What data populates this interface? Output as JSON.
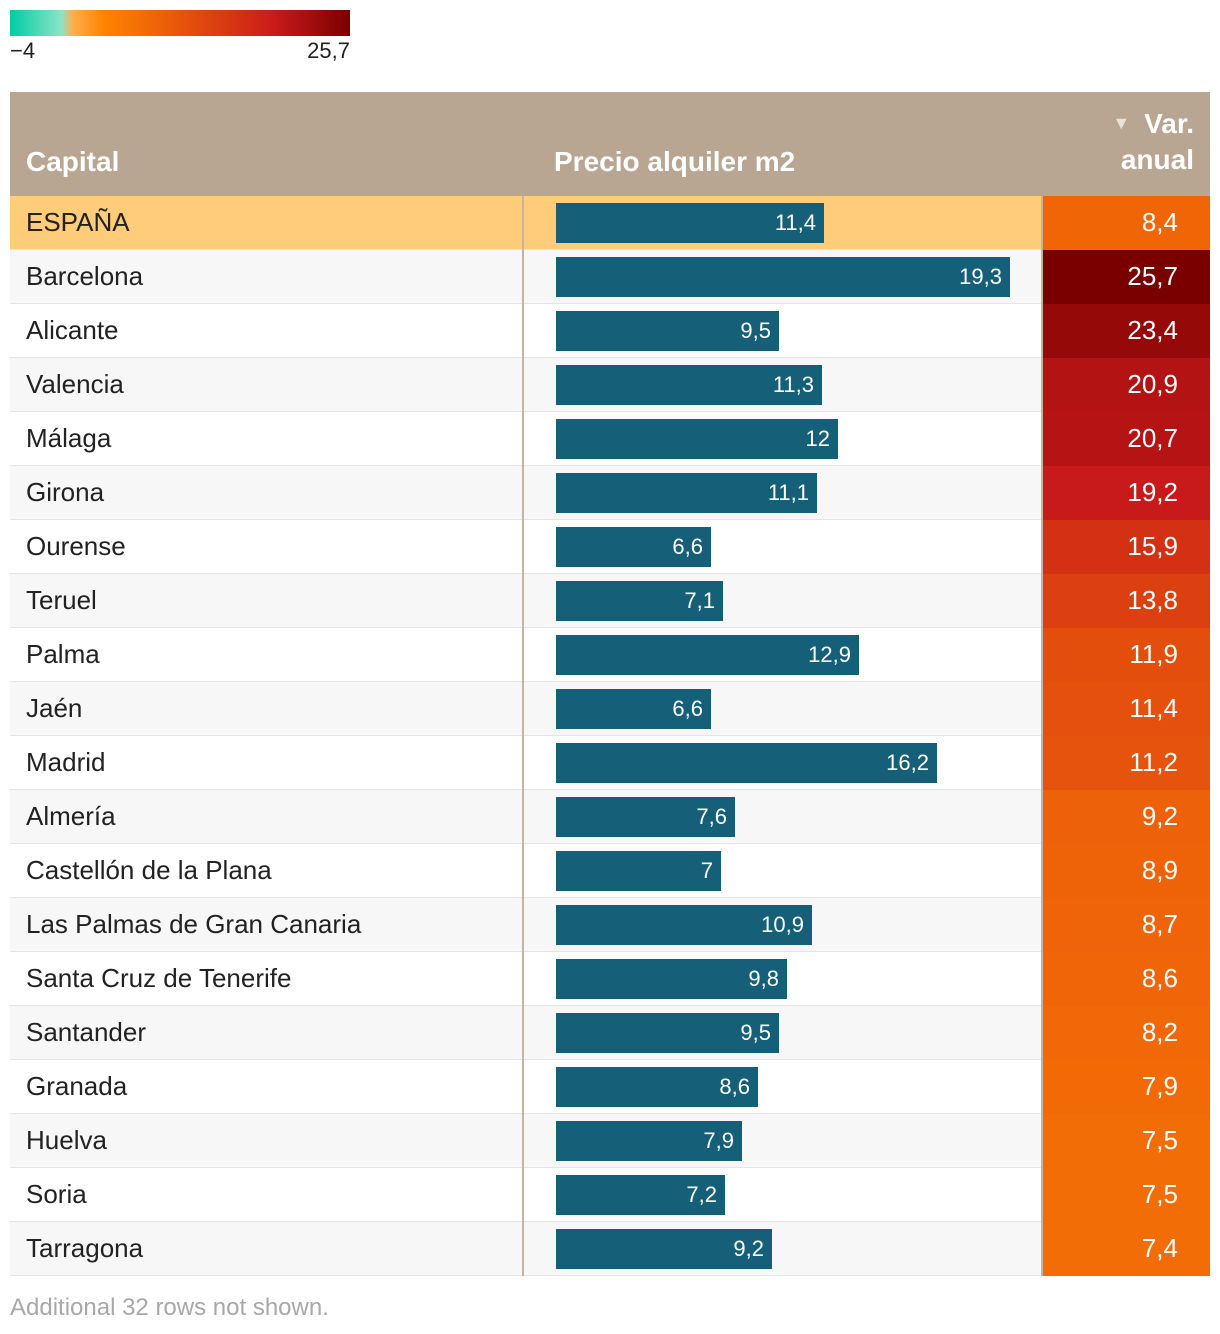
{
  "legend": {
    "min_label": "−4",
    "max_label": "25,7",
    "min_value": -4,
    "max_value": 25.7,
    "stops": [
      {
        "value": -4,
        "color": "#00cca5"
      },
      {
        "value": 0.5,
        "color": "#8de3c6"
      },
      {
        "value": 1.5,
        "color": "#ffae4a"
      },
      {
        "value": 4.2,
        "color": "#ff8400"
      },
      {
        "value": 19.2,
        "color": "#c81a1a"
      },
      {
        "value": 25.7,
        "color": "#7a0000"
      }
    ]
  },
  "header": {
    "capital": "Capital",
    "precio": "Precio alquiler m2",
    "var_line1": "Var.",
    "var_line2": "anual",
    "sort_icon": "triangle-down-icon"
  },
  "chart_data": {
    "type": "table",
    "columns": [
      "Capital",
      "Precio alquiler m2",
      "Var. anual"
    ],
    "bar_max": 19.3,
    "rows": [
      {
        "name": "ESPAÑA",
        "price": "11,4",
        "price_value": 11.4,
        "var": "8,4",
        "var_value": 8.4,
        "highlight": true
      },
      {
        "name": "Barcelona",
        "price": "19,3",
        "price_value": 19.3,
        "var": "25,7",
        "var_value": 25.7
      },
      {
        "name": "Alicante",
        "price": "9,5",
        "price_value": 9.5,
        "var": "23,4",
        "var_value": 23.4
      },
      {
        "name": "Valencia",
        "price": "11,3",
        "price_value": 11.3,
        "var": "20,9",
        "var_value": 20.9
      },
      {
        "name": "Málaga",
        "price": "12",
        "price_value": 12,
        "var": "20,7",
        "var_value": 20.7
      },
      {
        "name": "Girona",
        "price": "11,1",
        "price_value": 11.1,
        "var": "19,2",
        "var_value": 19.2
      },
      {
        "name": "Ourense",
        "price": "6,6",
        "price_value": 6.6,
        "var": "15,9",
        "var_value": 15.9
      },
      {
        "name": "Teruel",
        "price": "7,1",
        "price_value": 7.1,
        "var": "13,8",
        "var_value": 13.8
      },
      {
        "name": "Palma",
        "price": "12,9",
        "price_value": 12.9,
        "var": "11,9",
        "var_value": 11.9
      },
      {
        "name": "Jaén",
        "price": "6,6",
        "price_value": 6.6,
        "var": "11,4",
        "var_value": 11.4
      },
      {
        "name": "Madrid",
        "price": "16,2",
        "price_value": 16.2,
        "var": "11,2",
        "var_value": 11.2
      },
      {
        "name": "Almería",
        "price": "7,6",
        "price_value": 7.6,
        "var": "9,2",
        "var_value": 9.2
      },
      {
        "name": "Castellón de la Plana",
        "price": "7",
        "price_value": 7,
        "var": "8,9",
        "var_value": 8.9
      },
      {
        "name": "Las Palmas de Gran Canaria",
        "price": "10,9",
        "price_value": 10.9,
        "var": "8,7",
        "var_value": 8.7
      },
      {
        "name": "Santa Cruz de Tenerife",
        "price": "9,8",
        "price_value": 9.8,
        "var": "8,6",
        "var_value": 8.6
      },
      {
        "name": "Santander",
        "price": "9,5",
        "price_value": 9.5,
        "var": "8,2",
        "var_value": 8.2
      },
      {
        "name": "Granada",
        "price": "8,6",
        "price_value": 8.6,
        "var": "7,9",
        "var_value": 7.9
      },
      {
        "name": "Huelva",
        "price": "7,9",
        "price_value": 7.9,
        "var": "7,5",
        "var_value": 7.5
      },
      {
        "name": "Soria",
        "price": "7,2",
        "price_value": 7.2,
        "var": "7,5",
        "var_value": 7.5
      },
      {
        "name": "Tarragona",
        "price": "9,2",
        "price_value": 9.2,
        "var": "7,4",
        "var_value": 7.4
      }
    ]
  },
  "footnote": "Additional 32 rows not shown."
}
